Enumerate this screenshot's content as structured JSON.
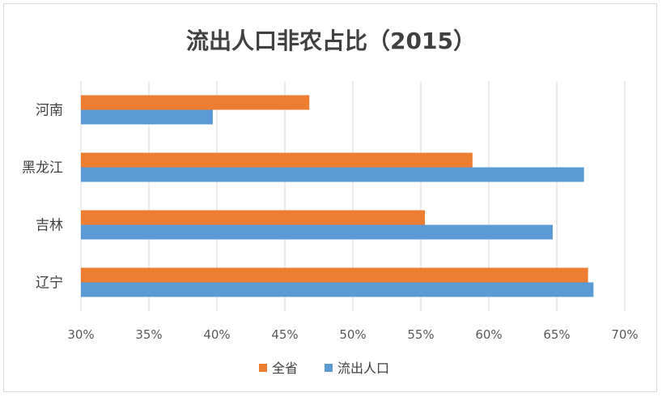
{
  "chart_data": {
    "type": "bar",
    "orientation": "horizontal",
    "title": "流出人口非农占比（2015）",
    "categories": [
      "辽宁",
      "吉林",
      "黑龙江",
      "河南"
    ],
    "series": [
      {
        "name": "全省",
        "color": "#ED7D31",
        "values": [
          67.3,
          55.3,
          58.8,
          46.8
        ]
      },
      {
        "name": "流出人口",
        "color": "#5B9BD5",
        "values": [
          67.7,
          64.7,
          67.0,
          39.7
        ]
      }
    ],
    "xlim": [
      30,
      70
    ],
    "xticks": [
      "30%",
      "35%",
      "40%",
      "45%",
      "50%",
      "55%",
      "60%",
      "65%",
      "70%"
    ],
    "grid": true,
    "legend_position": "bottom"
  }
}
